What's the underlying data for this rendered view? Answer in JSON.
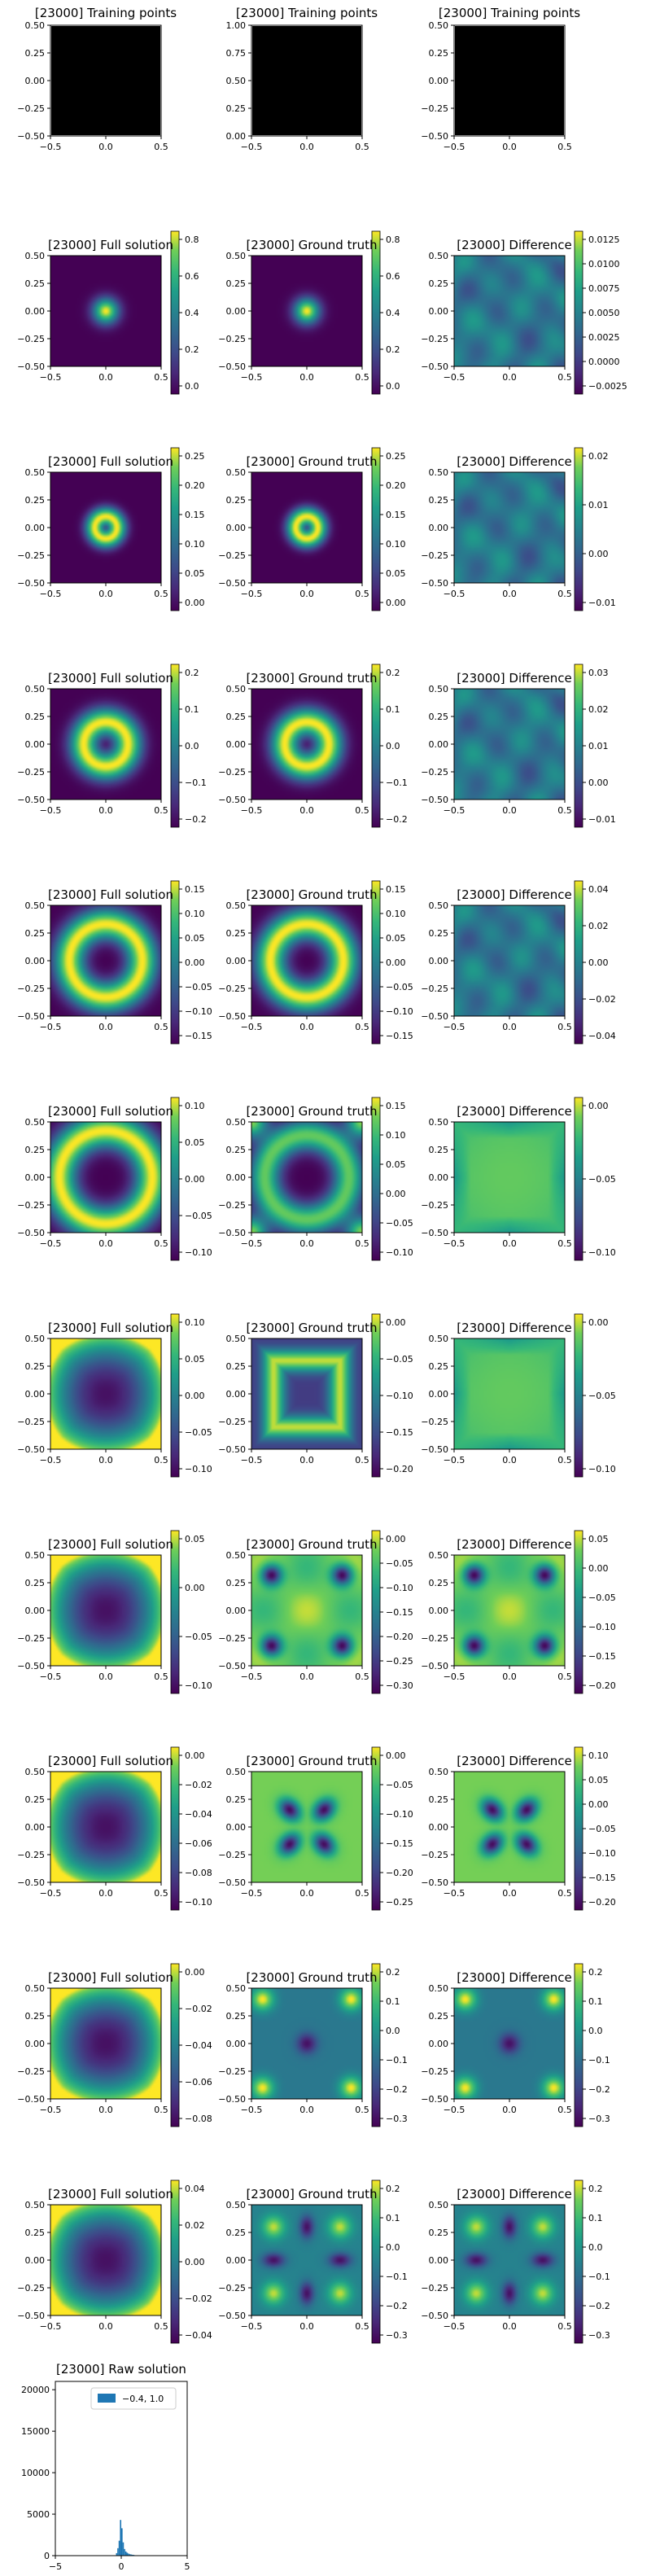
{
  "colors": {
    "viridis_min": "#440154",
    "viridis_mid": "#21918c",
    "viridis_max": "#fde725",
    "bar": "#1f77b4",
    "black": "#000000"
  },
  "colormap": "viridis",
  "training": {
    "title": "[23000] Training points",
    "panels": [
      {
        "xticks": [
          "−0.5",
          "0.0",
          "0.5"
        ],
        "yticks": [
          "0.50",
          "0.25",
          "0.00",
          "−0.25",
          "−0.50"
        ]
      },
      {
        "xticks": [
          "−0.5",
          "0.0",
          "0.5"
        ],
        "yticks": [
          "1.00",
          "0.75",
          "0.50",
          "0.25",
          "0.00"
        ]
      },
      {
        "xticks": [
          "−0.5",
          "0.0",
          "0.5"
        ],
        "yticks": [
          "0.50",
          "0.25",
          "0.00",
          "−0.25",
          "−0.50"
        ]
      }
    ]
  },
  "axes": {
    "xticks": [
      "−0.5",
      "0.0",
      "0.5"
    ],
    "yticks": [
      "0.50",
      "0.25",
      "0.00",
      "−0.25",
      "−0.50"
    ]
  },
  "titles": {
    "full": "[23000] Full solution",
    "truth": "[23000] Ground truth",
    "diff": "[23000] Difference"
  },
  "chart_data": {
    "type": "heatmap",
    "x_range": [
      -0.5,
      0.5
    ],
    "y_range": [
      -0.5,
      0.5
    ],
    "rows": [
      {
        "full": {
          "pattern": "blob",
          "r": 0.0,
          "w": 0.08,
          "cb": [
            "0.8",
            "0.6",
            "0.4",
            "0.2",
            "0.0"
          ]
        },
        "truth": {
          "pattern": "blob",
          "r": 0.0,
          "w": 0.08,
          "cb": [
            "0.8",
            "0.6",
            "0.4",
            "0.2",
            "0.0"
          ]
        },
        "diff": {
          "pattern": "noise",
          "cb": [
            "0.0125",
            "0.0100",
            "0.0075",
            "0.0050",
            "0.0025",
            "0.0000",
            "−0.0025"
          ]
        }
      },
      {
        "full": {
          "pattern": "ring",
          "r": 0.1,
          "w": 0.06,
          "cb": [
            "0.25",
            "0.20",
            "0.15",
            "0.10",
            "0.05",
            "0.00"
          ]
        },
        "truth": {
          "pattern": "ring",
          "r": 0.1,
          "w": 0.06,
          "cb": [
            "0.25",
            "0.20",
            "0.15",
            "0.10",
            "0.05",
            "0.00"
          ]
        },
        "diff": {
          "pattern": "noise",
          "cb": [
            "0.02",
            "0.01",
            "0.00",
            "−0.01"
          ]
        }
      },
      {
        "full": {
          "pattern": "ring",
          "r": 0.2,
          "w": 0.09,
          "cb": [
            "0.2",
            "0.1",
            "0.0",
            "−0.1",
            "−0.2"
          ]
        },
        "truth": {
          "pattern": "ring",
          "r": 0.2,
          "w": 0.09,
          "cb": [
            "0.2",
            "0.1",
            "0.0",
            "−0.1",
            "−0.2"
          ]
        },
        "diff": {
          "pattern": "noise",
          "cb": [
            "0.03",
            "0.02",
            "0.01",
            "0.00",
            "−0.01"
          ]
        }
      },
      {
        "full": {
          "pattern": "ring",
          "r": 0.33,
          "w": 0.1,
          "cb": [
            "0.15",
            "0.10",
            "0.05",
            "0.00",
            "−0.05",
            "−0.10",
            "−0.15"
          ]
        },
        "truth": {
          "pattern": "ring",
          "r": 0.33,
          "w": 0.1,
          "cb": [
            "0.15",
            "0.10",
            "0.05",
            "0.00",
            "−0.05",
            "−0.10",
            "−0.15"
          ]
        },
        "diff": {
          "pattern": "noise",
          "cb": [
            "0.04",
            "0.02",
            "0.00",
            "−0.02",
            "−0.04"
          ]
        }
      },
      {
        "full": {
          "pattern": "ring",
          "r": 0.42,
          "w": 0.11,
          "cb": [
            "0.10",
            "0.05",
            "0.00",
            "−0.05",
            "−0.10"
          ]
        },
        "truth": {
          "pattern": "ring4",
          "r": 0.38,
          "w": 0.1,
          "cb": [
            "0.15",
            "0.10",
            "0.05",
            "0.00",
            "−0.05",
            "−0.10"
          ]
        },
        "diff": {
          "pattern": "star",
          "cb": [
            "0.00",
            "−0.05",
            "−0.10"
          ]
        }
      },
      {
        "full": {
          "pattern": "bowl",
          "cb": [
            "0.10",
            "0.05",
            "0.00",
            "−0.05",
            "−0.10"
          ]
        },
        "truth": {
          "pattern": "square",
          "cb": [
            "0.00",
            "−0.05",
            "−0.10",
            "−0.15",
            "−0.20"
          ]
        },
        "diff": {
          "pattern": "star",
          "cb": [
            "0.00",
            "−0.05",
            "−0.10"
          ]
        }
      },
      {
        "full": {
          "pattern": "bowl",
          "cb": [
            "0.05",
            "0.00",
            "−0.05",
            "−0.10"
          ]
        },
        "truth": {
          "pattern": "cross",
          "cb": [
            "0.00",
            "−0.05",
            "−0.10",
            "−0.15",
            "−0.20",
            "−0.25",
            "−0.30"
          ]
        },
        "diff": {
          "pattern": "cross",
          "cb": [
            "0.05",
            "0.00",
            "−0.05",
            "−0.10",
            "−0.15",
            "−0.20"
          ]
        }
      },
      {
        "full": {
          "pattern": "bowl",
          "cb": [
            "0.00",
            "−0.02",
            "−0.04",
            "−0.06",
            "−0.08",
            "−0.10"
          ]
        },
        "truth": {
          "pattern": "xpat",
          "cb": [
            "0.00",
            "−0.05",
            "−0.10",
            "−0.15",
            "−0.20",
            "−0.25"
          ]
        },
        "diff": {
          "pattern": "xpat",
          "cb": [
            "0.10",
            "0.05",
            "0.00",
            "−0.05",
            "−0.10",
            "−0.15",
            "−0.20"
          ]
        }
      },
      {
        "full": {
          "pattern": "bowl",
          "cb": [
            "0.00",
            "−0.02",
            "−0.04",
            "−0.06",
            "−0.08"
          ]
        },
        "truth": {
          "pattern": "dots4",
          "cb": [
            "0.2",
            "0.1",
            "0.0",
            "−0.1",
            "−0.2",
            "−0.3"
          ]
        },
        "diff": {
          "pattern": "dots4",
          "cb": [
            "0.2",
            "0.1",
            "0.0",
            "−0.1",
            "−0.2",
            "−0.3"
          ]
        }
      },
      {
        "full": {
          "pattern": "bowl",
          "cb": [
            "0.04",
            "0.02",
            "0.00",
            "−0.02",
            "−0.04"
          ]
        },
        "truth": {
          "pattern": "grid4",
          "cb": [
            "0.2",
            "0.1",
            "0.0",
            "−0.1",
            "−0.2",
            "−0.3"
          ]
        },
        "diff": {
          "pattern": "grid4",
          "cb": [
            "0.2",
            "0.1",
            "0.0",
            "−0.1",
            "−0.2",
            "−0.3"
          ]
        }
      }
    ],
    "histogram": {
      "type": "bar",
      "title": "[23000] Raw solution",
      "legend": "−0.4, 1.0",
      "legend_position": "upper center",
      "xlim": [
        -5,
        5
      ],
      "ylim": [
        0,
        21000
      ],
      "xticks": [
        "−5",
        "0",
        "5"
      ],
      "yticks": [
        "20000",
        "15000",
        "10000",
        "5000",
        "0"
      ],
      "bins": [
        -0.4,
        -0.3,
        -0.2,
        -0.1,
        0.0,
        0.1,
        0.2,
        0.3,
        0.4,
        0.5,
        0.6,
        0.7,
        0.8,
        0.9,
        1.0
      ],
      "counts": [
        300,
        900,
        1800,
        4300,
        3300,
        1600,
        800,
        500,
        350,
        250,
        180,
        140,
        110,
        90
      ]
    }
  }
}
